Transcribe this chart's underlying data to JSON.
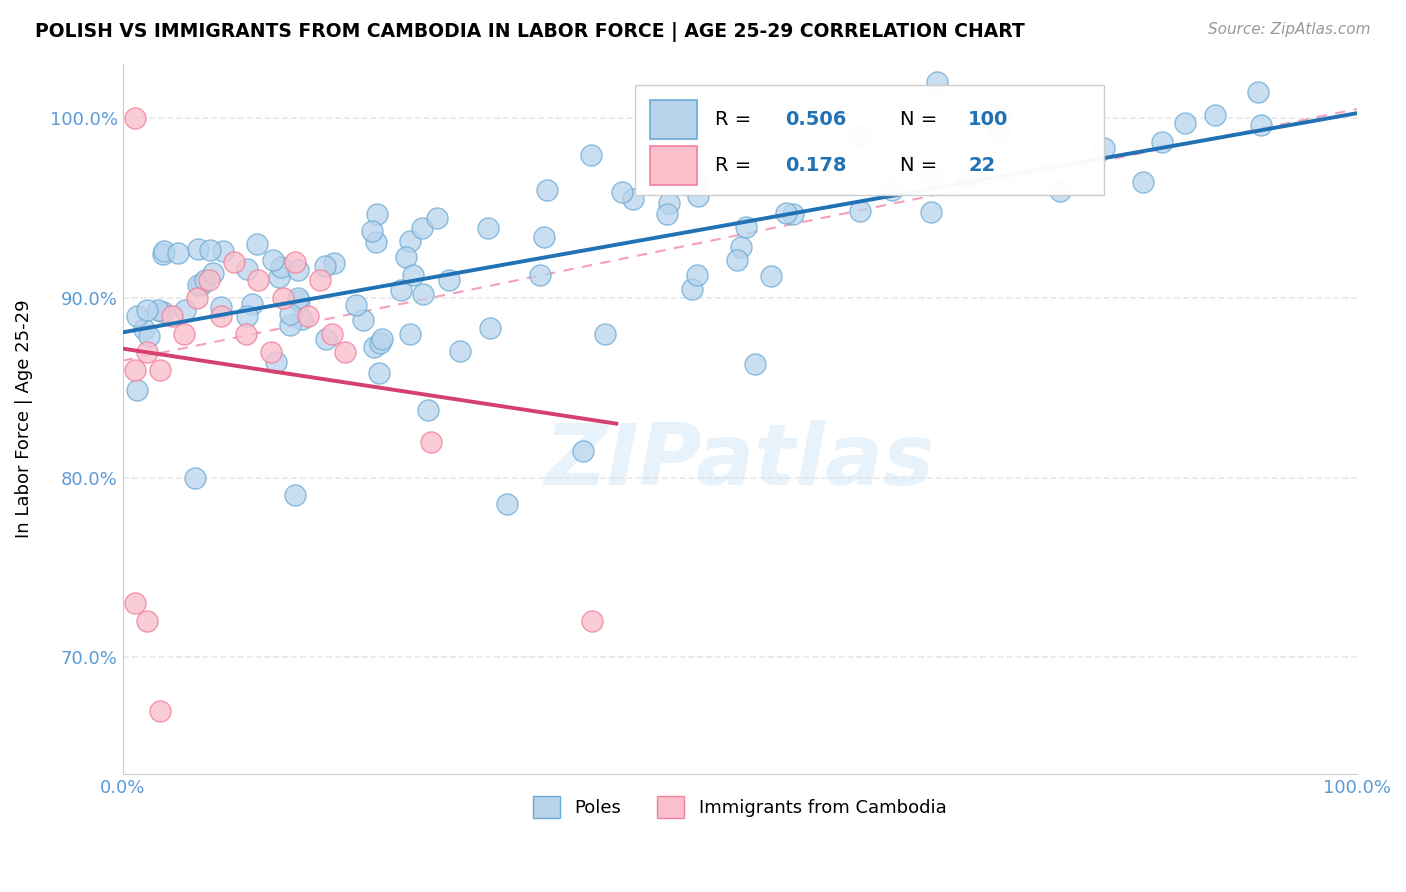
{
  "title": "POLISH VS IMMIGRANTS FROM CAMBODIA IN LABOR FORCE | AGE 25-29 CORRELATION CHART",
  "source": "Source: ZipAtlas.com",
  "ylabel": "In Labor Force | Age 25-29",
  "xlim": [
    0.0,
    1.0
  ],
  "ylim": [
    0.635,
    1.03
  ],
  "blue_fill": "#b8d4ed",
  "blue_edge": "#6aaad4",
  "pink_fill": "#f9c0cc",
  "pink_edge": "#f080a0",
  "blue_line": "#2171b5",
  "pink_line": "#d44070",
  "pink_dash": "#f4a0b8",
  "R_blue": 0.506,
  "N_blue": 100,
  "R_pink": 0.178,
  "N_pink": 22,
  "legend_label_blue": "Poles",
  "legend_label_pink": "Immigrants from Cambodia",
  "watermark": "ZIPatlas",
  "tick_color": "#5b9bd5",
  "grid_color": "#e8e8e8"
}
